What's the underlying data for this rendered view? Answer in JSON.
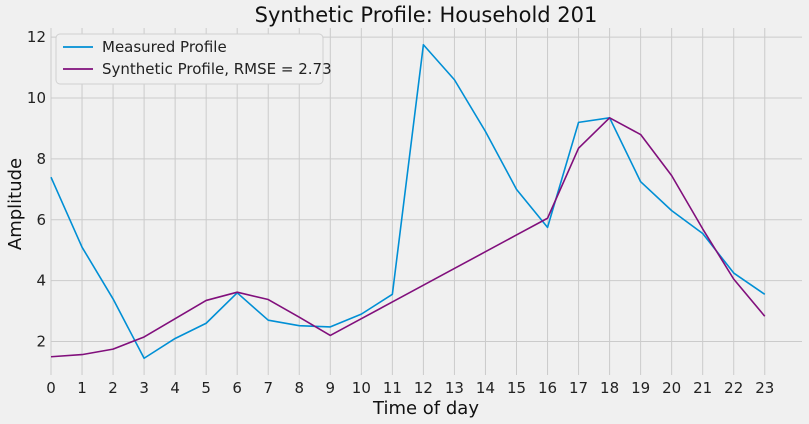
{
  "chart_data": {
    "type": "line",
    "title": "Synthetic Profile: Household 201",
    "xlabel": "Time of day",
    "ylabel": "Amplitude",
    "x": [
      0,
      1,
      2,
      3,
      4,
      5,
      6,
      7,
      8,
      9,
      10,
      11,
      12,
      13,
      14,
      15,
      16,
      17,
      18,
      19,
      20,
      21,
      22,
      23
    ],
    "xticks": [
      "0",
      "1",
      "2",
      "3",
      "4",
      "5",
      "6",
      "7",
      "8",
      "9",
      "10",
      "11",
      "12",
      "13",
      "14",
      "15",
      "16",
      "17",
      "18",
      "19",
      "20",
      "21",
      "22",
      "23"
    ],
    "yticks": [
      "2",
      "4",
      "6",
      "8",
      "10",
      "12"
    ],
    "xlim": [
      0,
      24.2
    ],
    "ylim": [
      0.9,
      12.3
    ],
    "grid": true,
    "legend_position": "top-left",
    "series": [
      {
        "name": "Measured Profile",
        "color": "#008fd5",
        "values": [
          7.4,
          5.1,
          3.4,
          1.45,
          2.1,
          2.6,
          3.6,
          2.7,
          2.52,
          2.48,
          2.9,
          3.55,
          11.75,
          10.6,
          8.9,
          7.0,
          5.75,
          9.2,
          9.35,
          7.25,
          6.3,
          5.55,
          4.25,
          3.55
        ]
      },
      {
        "name": "Synthetic Profile, RMSE = 2.73",
        "color": "#810f7c",
        "values": [
          1.5,
          1.57,
          1.75,
          2.15,
          2.75,
          3.35,
          3.62,
          3.38,
          2.8,
          2.2,
          2.75,
          3.3,
          3.85,
          4.4,
          4.95,
          5.5,
          6.05,
          8.35,
          9.35,
          8.8,
          7.45,
          5.7,
          4.05,
          2.83
        ]
      }
    ]
  }
}
